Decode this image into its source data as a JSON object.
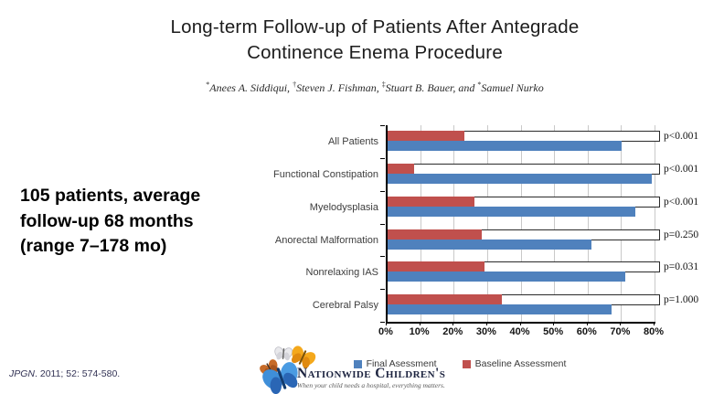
{
  "slide": {
    "title_line1": "Long-term Follow-up of Patients After Antegrade",
    "title_line2": "Continence Enema Procedure",
    "authors": [
      {
        "marker": "*",
        "name": "Anees A. Siddiqui, "
      },
      {
        "marker": "†",
        "name": "Steven J. Fishman, "
      },
      {
        "marker": "‡",
        "name": "Stuart B. Bauer, and "
      },
      {
        "marker": "*",
        "name": "Samuel Nurko"
      }
    ],
    "highlight_text": "105 patients, average\nfollow-up 68 months\n(range 7–178 mo)",
    "citation": {
      "journal": "JPGN",
      "rest": ". 2011; 52: 574-580."
    }
  },
  "chart_data": {
    "type": "bar",
    "orientation": "horizontal",
    "title": "",
    "xlabel": "",
    "ylabel": "",
    "xlim": [
      0,
      80
    ],
    "x_ticks": [
      "0%",
      "10%",
      "20%",
      "30%",
      "40%",
      "50%",
      "60%",
      "70%",
      "80%"
    ],
    "grid": true,
    "legend_position": "bottom",
    "categories": [
      "All Patients",
      "Functional Constipation",
      "Myelodysplasia",
      "Anorectal Malformation",
      "Nonrelaxing IAS",
      "Cerebral Palsy"
    ],
    "series": [
      {
        "name": "Final Asessment",
        "color": "#4F81BD",
        "values": [
          70,
          79,
          74,
          61,
          71,
          67
        ]
      },
      {
        "name": "Baseline Assessment",
        "color": "#C0504D",
        "values": [
          23,
          8,
          26,
          28,
          29,
          34
        ]
      }
    ],
    "p_values": [
      "p<0.001",
      "p<0.001",
      "p<0.001",
      "p=0.250",
      "p=0.031",
      "p=1.000"
    ]
  },
  "logo": {
    "wordmark": "Nationwide Children's",
    "tagline": "When your child needs a hospital, everything matters."
  }
}
